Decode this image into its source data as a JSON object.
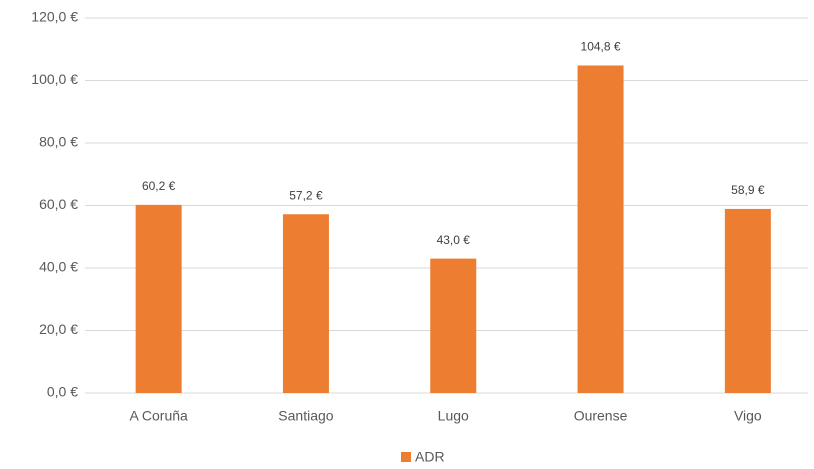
{
  "chart_data": {
    "type": "bar",
    "categories": [
      "A Coruña",
      "Santiago",
      "Lugo",
      "Ourense",
      "Vigo"
    ],
    "series": [
      {
        "name": "ADR",
        "color": "#ed7d31",
        "values": [
          60.2,
          57.2,
          43.0,
          104.8,
          58.9
        ],
        "value_labels": [
          "60,2 €",
          "57,2 €",
          "43,0 €",
          "104,8 €",
          "58,9 €"
        ]
      }
    ],
    "ylim": [
      0,
      120
    ],
    "yticks": [
      {
        "value": 0,
        "label": "0,0 €"
      },
      {
        "value": 20,
        "label": "20,0 €"
      },
      {
        "value": 40,
        "label": "40,0 €"
      },
      {
        "value": 60,
        "label": "60,0 €"
      },
      {
        "value": 80,
        "label": "80,0 €"
      },
      {
        "value": 100,
        "label": "100,0 €"
      },
      {
        "value": 120,
        "label": "120,0 €"
      }
    ],
    "grid": true,
    "legend": "bottom"
  }
}
